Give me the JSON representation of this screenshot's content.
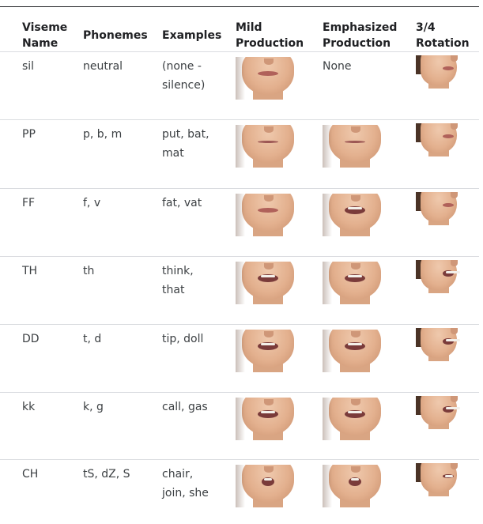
{
  "headers": {
    "name": [
      "Viseme",
      "Name"
    ],
    "phonemes": "Phonemes",
    "examples": "Examples",
    "mild": [
      "Mild",
      "Production"
    ],
    "emphasized": [
      "Emphasized",
      "Production"
    ],
    "rotation": [
      "3/4",
      "Rotation"
    ]
  },
  "rows": [
    {
      "name": "sil",
      "phonemes": "neutral",
      "examples": [
        "(none -",
        "silence)"
      ],
      "emphasized_text": "None",
      "mouth_mild": "closed",
      "mouth_emph": "none",
      "mouth_rot": "closed"
    },
    {
      "name": "PP",
      "phonemes": "p, b, m",
      "examples": [
        "put, bat,",
        "mat"
      ],
      "emphasized_text": "",
      "mouth_mild": "pressed",
      "mouth_emph": "pressed",
      "mouth_rot": "closed"
    },
    {
      "name": "FF",
      "phonemes": "f, v",
      "examples": [
        "fat, vat"
      ],
      "emphasized_text": "",
      "mouth_mild": "closed",
      "mouth_emph": "open",
      "mouth_rot": "closed"
    },
    {
      "name": "TH",
      "phonemes": "th",
      "examples": [
        "think,",
        "that"
      ],
      "emphasized_text": "",
      "mouth_mild": "open",
      "mouth_emph": "open",
      "mouth_rot": "open"
    },
    {
      "name": "DD",
      "phonemes": "t, d",
      "examples": [
        "tip, doll"
      ],
      "emphasized_text": "",
      "mouth_mild": "open",
      "mouth_emph": "open",
      "mouth_rot": "open"
    },
    {
      "name": "kk",
      "phonemes": "k, g",
      "examples": [
        "call, gas"
      ],
      "emphasized_text": "",
      "mouth_mild": "open",
      "mouth_emph": "open",
      "mouth_rot": "open"
    },
    {
      "name": "CH",
      "phonemes": "tS, dZ, S",
      "examples": [
        "chair,",
        "join, she"
      ],
      "emphasized_text": "",
      "mouth_mild": "round",
      "mouth_emph": "round",
      "mouth_rot": "round"
    }
  ]
}
